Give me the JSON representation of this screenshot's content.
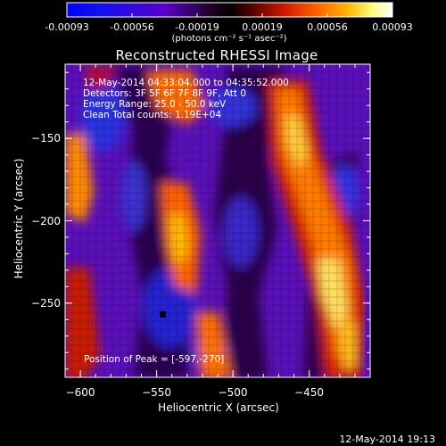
{
  "colorbar": {
    "tick_labels": [
      "-0.00093",
      "-0.00056",
      "-0.00019",
      "0.00019",
      "0.00056",
      "0.00093"
    ],
    "unit_label": "(photons cm⁻² s⁻¹ asec⁻²)"
  },
  "chart_data": {
    "type": "heatmap",
    "title": "Reconstructed RHESSI Image",
    "xlabel": "Heliocentric X (arcsec)",
    "ylabel": "Heliocentric Y (arcsec)",
    "xlim": [
      -610,
      -410
    ],
    "ylim": [
      -295,
      -105
    ],
    "x_ticks": [
      -600,
      -550,
      -500,
      -450
    ],
    "x_tick_labels": [
      "−600",
      "−550",
      "−500",
      "−450"
    ],
    "y_ticks": [
      -150,
      -200,
      -250
    ],
    "y_tick_labels": [
      "−150",
      "−200",
      "−250"
    ],
    "value_range": [
      -0.00093,
      0.00093
    ],
    "colormap": "rhessi blue-purple-black-red-yellow-white",
    "annotations": [
      "12-May-2014 04:33:04.000 to 04:35:52.000",
      "Detectors: 3F 5F 6F 7F 8F 9F, Att 0",
      "Energy Range: 25.0 - 50.0 keV",
      "Clean     Total counts: 1.19E+04"
    ],
    "peak_text": "Position of Peak = [-597,-270]",
    "peak": {
      "x": -597,
      "y": -270
    }
  },
  "footer": {
    "datestamp": "12-May-2014 19:13"
  }
}
